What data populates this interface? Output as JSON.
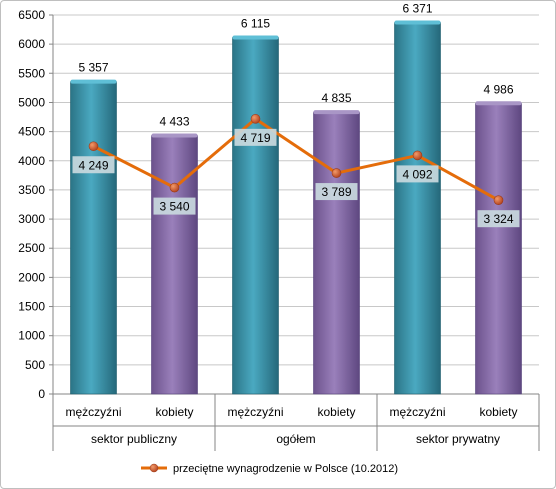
{
  "chart_data": {
    "type": "bar",
    "categories": [
      "mężczyźni",
      "kobiety",
      "mężczyźni",
      "kobiety",
      "mężczyźni",
      "kobiety"
    ],
    "groups": [
      "sektor publiczny",
      "ogółem",
      "sektor prywatny"
    ],
    "values": [
      5357,
      4433,
      6115,
      4835,
      6371,
      4986
    ],
    "value_labels": [
      "5 357",
      "4 433",
      "6 115",
      "4 835",
      "6 371",
      "4 986"
    ],
    "line_series": {
      "name": "przeciętne wynagrodzenie w Polsce (10.2012)",
      "values": [
        4249,
        3540,
        4719,
        3789,
        4092,
        3324
      ],
      "labels": [
        "4 249",
        "3 540",
        "4 719",
        "3 789",
        "4 092",
        "3 324"
      ],
      "color": "#E46C0A"
    },
    "ylim": [
      0,
      6500
    ],
    "yticks": [
      0,
      500,
      1000,
      1500,
      2000,
      2500,
      3000,
      3500,
      4000,
      4500,
      5000,
      5500,
      6000,
      6500
    ],
    "ytick_labels": [
      "0",
      "500",
      "1000",
      "1500",
      "2000",
      "2500",
      "3000",
      "3500",
      "4000",
      "4500",
      "5000",
      "5500",
      "6000",
      "6500"
    ],
    "grid": true,
    "legend_position": "bottom",
    "colors": {
      "men": "#31849B",
      "women": "#8064A2",
      "line": "#E46C0A",
      "marker": "#C0504D"
    }
  }
}
